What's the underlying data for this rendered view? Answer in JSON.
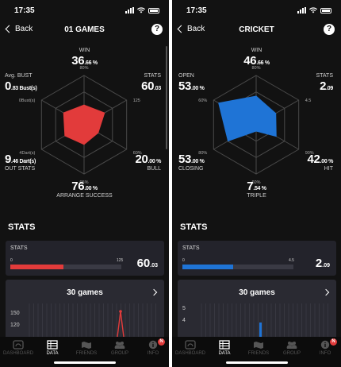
{
  "status": {
    "time": "17:35"
  },
  "tabbar": {
    "dashboard": "DASHBOARD",
    "data": "DATA",
    "friends": "FRIENDS",
    "group": "GROUP",
    "info": "INFO",
    "info_badge": "N"
  },
  "left": {
    "back": "Back",
    "title": "01 GAMES",
    "help": "?",
    "radar": {
      "accent": "#e23b3b",
      "axes": [
        {
          "label": "WIN",
          "value": "36",
          "decimal": ".66 %",
          "scale_label": "80%",
          "level": 0.4
        },
        {
          "label": "STATS",
          "value": "60",
          "decimal": ".03",
          "scale_label": "125",
          "level": 0.48
        },
        {
          "label": "BULL",
          "value": "20",
          "decimal": ".00 %",
          "scale_label": "60%",
          "level": 0.33
        },
        {
          "label": "ARRANGE SUCCESS",
          "value": "76",
          "decimal": ".00 %",
          "scale_label": "95%",
          "level": 0.4
        },
        {
          "label": "OUT STATS",
          "value": "9",
          "decimal": ".46 Dart(s)",
          "scale_label": "4Dart(s)",
          "level": 0.45
        },
        {
          "label": "Avg. BUST",
          "value": "0",
          "decimal": ".83 Bust(s)",
          "scale_label": "0Bust(s)",
          "level": 0.48
        }
      ]
    },
    "section_title": "STATS",
    "stats_card": {
      "label": "STATS",
      "min": "0",
      "max": "125",
      "value": "60",
      "decimal": ".03",
      "fill": 0.48
    },
    "games_card": {
      "title": "30 games",
      "y_ticks": [
        "150",
        "120"
      ]
    }
  },
  "right": {
    "back": "Back",
    "title": "CRICKET",
    "help": "?",
    "radar": {
      "accent": "#1f74d6",
      "axes": [
        {
          "label": "WIN",
          "value": "46",
          "decimal": ".66 %",
          "scale_label": "80%",
          "level": 0.58
        },
        {
          "label": "STATS",
          "value": "2",
          "decimal": ".09",
          "scale_label": "4.5",
          "level": 0.46
        },
        {
          "label": "HIT",
          "value": "42",
          "decimal": ".00 %",
          "scale_label": "90%",
          "level": 0.47
        },
        {
          "label": "TRIPLE",
          "value": "7",
          "decimal": ".54 %",
          "scale_label": "60%",
          "level": 0.13
        },
        {
          "label": "CLOSING",
          "value": "53",
          "decimal": ".00 %",
          "scale_label": "80%",
          "level": 0.66
        },
        {
          "label": "OPEN",
          "value": "53",
          "decimal": ".00 %",
          "scale_label": "60%",
          "level": 0.88
        }
      ]
    },
    "section_title": "STATS",
    "stats_card": {
      "label": "STATS",
      "min": "0",
      "max": "4.5",
      "value": "2",
      "decimal": ".09",
      "fill": 0.46
    },
    "games_card": {
      "title": "30 games",
      "y_ticks": [
        "5",
        "4"
      ]
    }
  }
}
